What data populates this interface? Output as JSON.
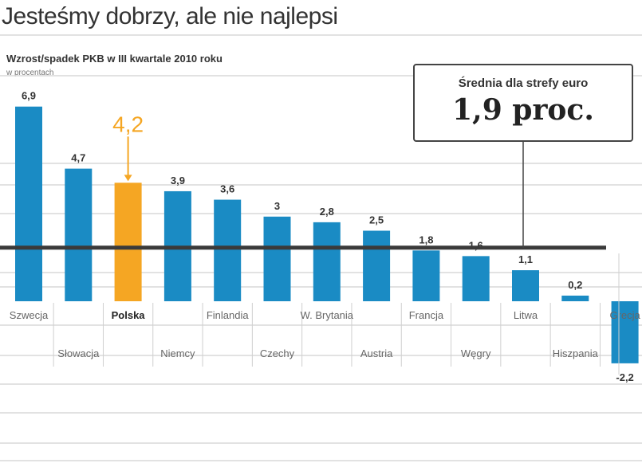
{
  "title": "Jesteśmy dobrzy, ale nie najlepsi",
  "subtitle": "Wzrost/spadek PKB w III kwartale 2010 roku",
  "unit_note": "w procentach",
  "callout": {
    "label": "Średnia dla strefy euro",
    "value": "1,9 proc."
  },
  "highlight_color": "#f5a623",
  "bar_color": "#1a8bc4",
  "chart_data": {
    "type": "bar",
    "title": "Wzrost/spadek PKB w III kwartale 2010 roku",
    "unit": "w procentach",
    "categories": [
      "Szwecja",
      "Słowacja",
      "Polska",
      "Niemcy",
      "Finlandia",
      "Czechy",
      "W. Brytania",
      "Austria",
      "Francja",
      "Węgry",
      "Litwa",
      "Hiszpania",
      "Grecja"
    ],
    "values": [
      6.9,
      4.7,
      4.2,
      3.9,
      3.6,
      3,
      2.8,
      2.5,
      1.8,
      1.6,
      1.1,
      0.2,
      -2.2
    ],
    "value_labels": [
      "6,9",
      "4,7",
      "4,2",
      "3,9",
      "3,6",
      "3",
      "2,8",
      "2,5",
      "1,8",
      "1,6",
      "1,1",
      "0,2",
      "-2,2"
    ],
    "highlight": "Polska",
    "reference_line": {
      "value": 1.9,
      "label": "Średnia dla strefy euro"
    },
    "ylim": [
      -2.8,
      7.3
    ],
    "grid": true
  }
}
